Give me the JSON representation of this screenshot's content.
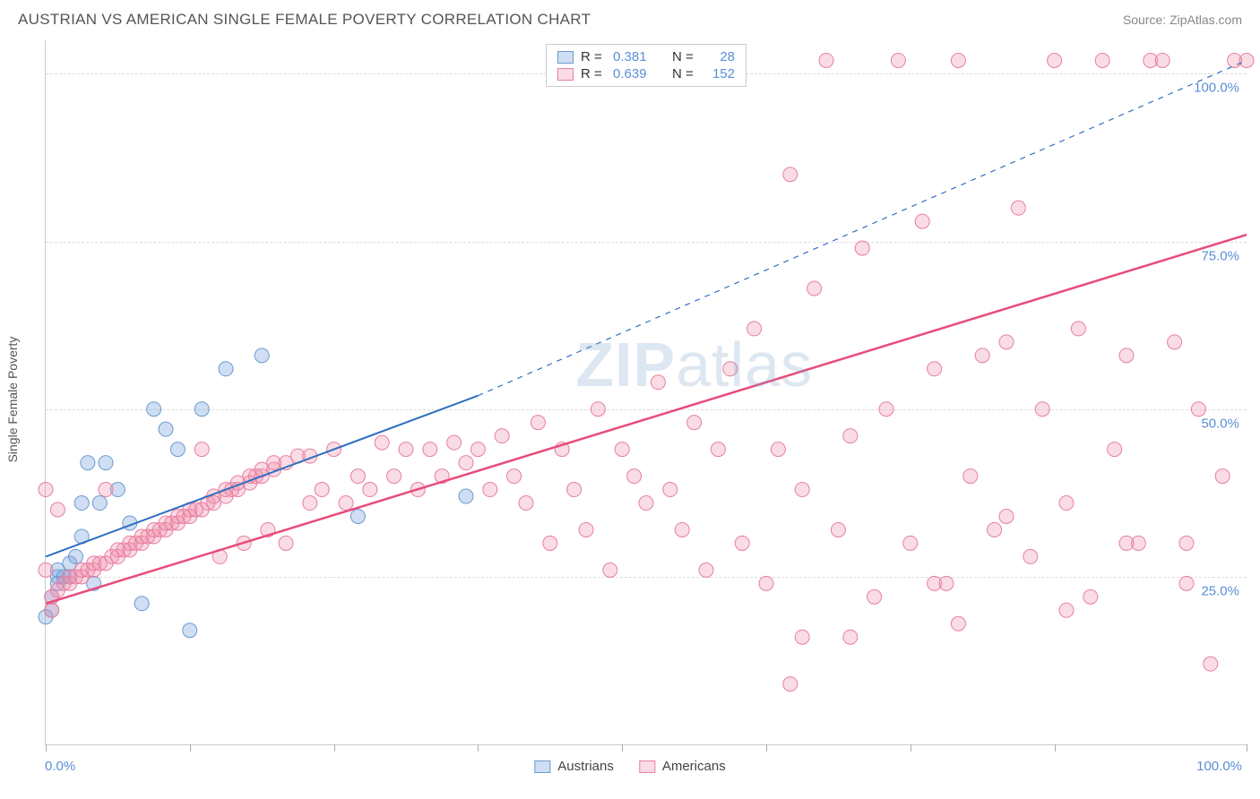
{
  "title": "AUSTRIAN VS AMERICAN SINGLE FEMALE POVERTY CORRELATION CHART",
  "source": "Source: ZipAtlas.com",
  "ylabel": "Single Female Poverty",
  "watermark_bold": "ZIP",
  "watermark_light": "atlas",
  "xlabel_min": "0.0%",
  "xlabel_max": "100.0%",
  "chart": {
    "type": "scatter",
    "xlim": [
      0,
      100
    ],
    "ylim": [
      0,
      105
    ],
    "xtick_positions": [
      0,
      12,
      24,
      36,
      48,
      60,
      72,
      84,
      100
    ],
    "yticks": [
      {
        "v": 25,
        "label": "25.0%"
      },
      {
        "v": 50,
        "label": "50.0%"
      },
      {
        "v": 75,
        "label": "75.0%"
      },
      {
        "v": 100,
        "label": "100.0%"
      }
    ],
    "grid_color": "#dddddd",
    "background_color": "#ffffff",
    "axis_color": "#cccccc",
    "tick_label_color": "#5a8fd6",
    "series": [
      {
        "name": "Austrians",
        "R": "0.381",
        "N": "28",
        "marker_fill": "rgba(120,160,220,0.35)",
        "marker_stroke": "#6a9ad0",
        "marker_radius": 8,
        "line_color": "#2f6fc0",
        "line_width": 2,
        "trend_solid": {
          "x1": 0,
          "y1": 28,
          "x2": 36,
          "y2": 52
        },
        "trend_dash": {
          "x1": 36,
          "y1": 52,
          "x2": 100,
          "y2": 102
        },
        "points": [
          [
            0,
            19
          ],
          [
            0.5,
            20
          ],
          [
            0.5,
            22
          ],
          [
            1,
            24
          ],
          [
            1,
            25
          ],
          [
            1,
            26
          ],
          [
            1.5,
            25
          ],
          [
            2,
            25
          ],
          [
            2,
            27
          ],
          [
            2.5,
            28
          ],
          [
            3,
            31
          ],
          [
            3,
            36
          ],
          [
            3.5,
            42
          ],
          [
            4,
            24
          ],
          [
            4.5,
            36
          ],
          [
            5,
            42
          ],
          [
            6,
            38
          ],
          [
            7,
            33
          ],
          [
            8,
            21
          ],
          [
            9,
            50
          ],
          [
            10,
            47
          ],
          [
            11,
            44
          ],
          [
            12,
            17
          ],
          [
            13,
            50
          ],
          [
            15,
            56
          ],
          [
            18,
            58
          ],
          [
            26,
            34
          ],
          [
            35,
            37
          ]
        ]
      },
      {
        "name": "Americans",
        "R": "0.639",
        "N": "152",
        "marker_fill": "rgba(240,140,170,0.30)",
        "marker_stroke": "#e87fa0",
        "marker_radius": 8,
        "line_color": "#e84c7a",
        "line_width": 2.5,
        "trend_solid": {
          "x1": 0,
          "y1": 21,
          "x2": 100,
          "y2": 76
        },
        "points": [
          [
            0,
            26
          ],
          [
            0,
            38
          ],
          [
            0.5,
            20
          ],
          [
            0.5,
            22
          ],
          [
            1,
            23
          ],
          [
            1,
            35
          ],
          [
            1.5,
            24
          ],
          [
            2,
            24
          ],
          [
            2,
            25
          ],
          [
            2.5,
            25
          ],
          [
            3,
            25
          ],
          [
            3,
            26
          ],
          [
            3.5,
            26
          ],
          [
            4,
            26
          ],
          [
            4,
            27
          ],
          [
            4.5,
            27
          ],
          [
            5,
            27
          ],
          [
            5,
            38
          ],
          [
            5.5,
            28
          ],
          [
            6,
            28
          ],
          [
            6,
            29
          ],
          [
            6.5,
            29
          ],
          [
            7,
            29
          ],
          [
            7,
            30
          ],
          [
            7.5,
            30
          ],
          [
            8,
            30
          ],
          [
            8,
            31
          ],
          [
            8.5,
            31
          ],
          [
            9,
            31
          ],
          [
            9,
            32
          ],
          [
            9.5,
            32
          ],
          [
            10,
            32
          ],
          [
            10,
            33
          ],
          [
            10.5,
            33
          ],
          [
            11,
            33
          ],
          [
            11,
            34
          ],
          [
            11.5,
            34
          ],
          [
            12,
            34
          ],
          [
            12,
            35
          ],
          [
            12.5,
            35
          ],
          [
            13,
            35
          ],
          [
            13,
            44
          ],
          [
            13.5,
            36
          ],
          [
            14,
            36
          ],
          [
            14,
            37
          ],
          [
            14.5,
            28
          ],
          [
            15,
            37
          ],
          [
            15,
            38
          ],
          [
            15.5,
            38
          ],
          [
            16,
            38
          ],
          [
            16,
            39
          ],
          [
            16.5,
            30
          ],
          [
            17,
            39
          ],
          [
            17,
            40
          ],
          [
            17.5,
            40
          ],
          [
            18,
            40
          ],
          [
            18,
            41
          ],
          [
            18.5,
            32
          ],
          [
            19,
            41
          ],
          [
            19,
            42
          ],
          [
            20,
            42
          ],
          [
            20,
            30
          ],
          [
            21,
            43
          ],
          [
            22,
            36
          ],
          [
            22,
            43
          ],
          [
            23,
            38
          ],
          [
            24,
            44
          ],
          [
            25,
            36
          ],
          [
            26,
            40
          ],
          [
            27,
            38
          ],
          [
            28,
            45
          ],
          [
            29,
            40
          ],
          [
            30,
            44
          ],
          [
            31,
            38
          ],
          [
            32,
            44
          ],
          [
            33,
            40
          ],
          [
            34,
            45
          ],
          [
            35,
            42
          ],
          [
            36,
            44
          ],
          [
            37,
            38
          ],
          [
            38,
            46
          ],
          [
            39,
            40
          ],
          [
            40,
            36
          ],
          [
            41,
            48
          ],
          [
            42,
            30
          ],
          [
            43,
            44
          ],
          [
            44,
            38
          ],
          [
            45,
            32
          ],
          [
            46,
            50
          ],
          [
            47,
            26
          ],
          [
            48,
            44
          ],
          [
            49,
            40
          ],
          [
            50,
            36
          ],
          [
            51,
            54
          ],
          [
            52,
            38
          ],
          [
            53,
            32
          ],
          [
            54,
            48
          ],
          [
            55,
            26
          ],
          [
            56,
            44
          ],
          [
            57,
            56
          ],
          [
            58,
            30
          ],
          [
            59,
            62
          ],
          [
            60,
            24
          ],
          [
            61,
            44
          ],
          [
            62,
            85
          ],
          [
            63,
            38
          ],
          [
            64,
            68
          ],
          [
            65,
            102
          ],
          [
            66,
            32
          ],
          [
            67,
            46
          ],
          [
            68,
            74
          ],
          [
            69,
            22
          ],
          [
            70,
            50
          ],
          [
            71,
            102
          ],
          [
            72,
            30
          ],
          [
            73,
            78
          ],
          [
            74,
            56
          ],
          [
            75,
            24
          ],
          [
            76,
            102
          ],
          [
            77,
            40
          ],
          [
            78,
            58
          ],
          [
            79,
            32
          ],
          [
            80,
            60
          ],
          [
            81,
            80
          ],
          [
            82,
            28
          ],
          [
            83,
            50
          ],
          [
            84,
            102
          ],
          [
            85,
            36
          ],
          [
            86,
            62
          ],
          [
            87,
            22
          ],
          [
            88,
            102
          ],
          [
            89,
            44
          ],
          [
            90,
            58
          ],
          [
            91,
            30
          ],
          [
            92,
            102
          ],
          [
            93,
            102
          ],
          [
            94,
            60
          ],
          [
            95,
            24
          ],
          [
            96,
            50
          ],
          [
            97,
            12
          ],
          [
            98,
            40
          ],
          [
            99,
            102
          ],
          [
            100,
            102
          ],
          [
            63,
            16
          ],
          [
            67,
            16
          ],
          [
            76,
            18
          ],
          [
            80,
            34
          ],
          [
            85,
            20
          ],
          [
            62,
            9
          ],
          [
            74,
            24
          ],
          [
            90,
            30
          ],
          [
            95,
            30
          ]
        ]
      }
    ]
  }
}
